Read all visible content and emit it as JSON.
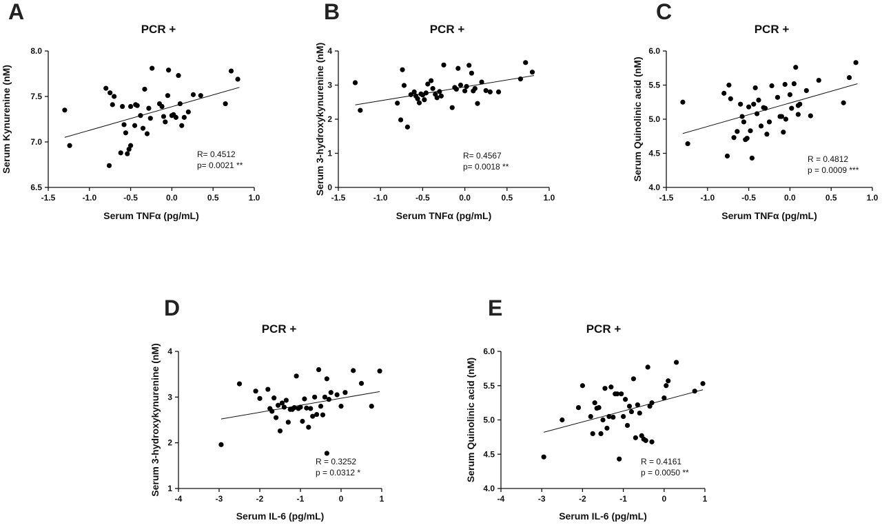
{
  "chart_data": [
    {
      "panel": "A",
      "type": "scatter",
      "title": "PCR +",
      "xlabel": "Serum TNFα (pg/mL)",
      "ylabel": "Serum Kynurenine (nM)",
      "xlim": [
        -1.5,
        1.0
      ],
      "ylim": [
        6.5,
        8.0
      ],
      "xticks": [
        "-1.5",
        "-1.0",
        "-0.5",
        "0.0",
        "0.5",
        "1.0"
      ],
      "yticks": [
        "6.5",
        "7.0",
        "7.5",
        "8.0"
      ],
      "stat_r": "R= 0.4512",
      "stat_p": "p= 0.0021 **",
      "fit_line": [
        [
          -1.3,
          7.05
        ],
        [
          0.82,
          7.6
        ]
      ],
      "points": [
        [
          -1.3,
          7.35
        ],
        [
          -1.24,
          6.96
        ],
        [
          -0.8,
          7.59
        ],
        [
          -0.75,
          7.54
        ],
        [
          -0.76,
          6.74
        ],
        [
          -0.7,
          7.5
        ],
        [
          -0.72,
          7.41
        ],
        [
          -0.6,
          7.39
        ],
        [
          -0.62,
          6.88
        ],
        [
          -0.58,
          7.19
        ],
        [
          -0.56,
          7.1
        ],
        [
          -0.54,
          6.87
        ],
        [
          -0.52,
          6.92
        ],
        [
          -0.5,
          6.96
        ],
        [
          -0.5,
          7.39
        ],
        [
          -0.45,
          7.18
        ],
        [
          -0.44,
          7.41
        ],
        [
          -0.42,
          7.4
        ],
        [
          -0.38,
          7.29
        ],
        [
          -0.35,
          7.15
        ],
        [
          -0.33,
          7.58
        ],
        [
          -0.3,
          7.09
        ],
        [
          -0.28,
          7.37
        ],
        [
          -0.26,
          7.26
        ],
        [
          -0.24,
          7.81
        ],
        [
          -0.15,
          7.42
        ],
        [
          -0.12,
          7.39
        ],
        [
          -0.1,
          7.28
        ],
        [
          -0.08,
          7.22
        ],
        [
          -0.05,
          7.51
        ],
        [
          -0.04,
          7.79
        ],
        [
          0.0,
          7.29
        ],
        [
          0.02,
          7.3
        ],
        [
          0.05,
          7.27
        ],
        [
          0.08,
          7.73
        ],
        [
          0.1,
          7.42
        ],
        [
          0.12,
          7.18
        ],
        [
          0.15,
          7.27
        ],
        [
          0.2,
          7.33
        ],
        [
          0.26,
          7.52
        ],
        [
          0.35,
          7.51
        ],
        [
          0.65,
          7.42
        ],
        [
          0.72,
          7.78
        ],
        [
          0.8,
          7.69
        ]
      ]
    },
    {
      "panel": "B",
      "type": "scatter",
      "title": "PCR +",
      "xlabel": "Serum TNFα (pg/mL)",
      "ylabel": "Serum 3-hydroxykynurenine (nM)",
      "xlim": [
        -1.5,
        1.0
      ],
      "ylim": [
        0,
        4
      ],
      "xticks": [
        "-1.5",
        "-1.0",
        "-0.5",
        "0.0",
        "0.5",
        "1.0"
      ],
      "yticks": [
        "0",
        "1",
        "2",
        "3",
        "4"
      ],
      "stat_r": "R= 0.4567",
      "stat_p": "p= 0.0018 **",
      "fit_line": [
        [
          -1.3,
          2.42
        ],
        [
          0.82,
          3.28
        ]
      ],
      "points": [
        [
          -1.3,
          3.07
        ],
        [
          -1.24,
          2.26
        ],
        [
          -0.8,
          2.47
        ],
        [
          -0.76,
          1.98
        ],
        [
          -0.74,
          3.45
        ],
        [
          -0.72,
          2.99
        ],
        [
          -0.68,
          1.77
        ],
        [
          -0.64,
          2.72
        ],
        [
          -0.6,
          2.8
        ],
        [
          -0.58,
          2.68
        ],
        [
          -0.56,
          2.6
        ],
        [
          -0.54,
          2.48
        ],
        [
          -0.52,
          2.74
        ],
        [
          -0.5,
          2.71
        ],
        [
          -0.48,
          2.57
        ],
        [
          -0.46,
          2.77
        ],
        [
          -0.44,
          3.03
        ],
        [
          -0.4,
          3.13
        ],
        [
          -0.38,
          2.9
        ],
        [
          -0.35,
          2.73
        ],
        [
          -0.33,
          2.63
        ],
        [
          -0.3,
          2.81
        ],
        [
          -0.28,
          2.68
        ],
        [
          -0.25,
          3.59
        ],
        [
          -0.15,
          2.34
        ],
        [
          -0.12,
          2.93
        ],
        [
          -0.1,
          2.88
        ],
        [
          -0.08,
          3.49
        ],
        [
          -0.05,
          3.0
        ],
        [
          0.0,
          2.83
        ],
        [
          0.02,
          2.96
        ],
        [
          0.05,
          3.58
        ],
        [
          0.08,
          3.35
        ],
        [
          0.1,
          2.83
        ],
        [
          0.12,
          2.9
        ],
        [
          0.15,
          2.46
        ],
        [
          0.2,
          3.09
        ],
        [
          0.25,
          2.84
        ],
        [
          0.3,
          2.8
        ],
        [
          0.4,
          2.8
        ],
        [
          0.66,
          3.18
        ],
        [
          0.72,
          3.66
        ],
        [
          0.8,
          3.38
        ]
      ]
    },
    {
      "panel": "C",
      "type": "scatter",
      "title": "PCR +",
      "xlabel": "Serum TNFα (pg/mL)",
      "ylabel": "Serum Quinolinic acid (nM)",
      "xlim": [
        -1.5,
        1.0
      ],
      "ylim": [
        4.0,
        6.0
      ],
      "xticks": [
        "-1.5",
        "-1.0",
        "-0.5",
        "0.0",
        "0.5",
        "1.0"
      ],
      "yticks": [
        "4.0",
        "4.5",
        "5.0",
        "5.5",
        "6.0"
      ],
      "stat_r": "R = 0.4812",
      "stat_p": "p = 0.0009 ***",
      "fit_line": [
        [
          -1.3,
          4.79
        ],
        [
          0.82,
          5.52
        ]
      ],
      "points": [
        [
          -1.3,
          5.25
        ],
        [
          -1.24,
          4.64
        ],
        [
          -0.8,
          5.38
        ],
        [
          -0.76,
          4.46
        ],
        [
          -0.74,
          5.5
        ],
        [
          -0.72,
          5.3
        ],
        [
          -0.68,
          4.73
        ],
        [
          -0.64,
          4.82
        ],
        [
          -0.6,
          5.22
        ],
        [
          -0.58,
          5.04
        ],
        [
          -0.56,
          4.96
        ],
        [
          -0.54,
          4.7
        ],
        [
          -0.52,
          4.72
        ],
        [
          -0.5,
          5.18
        ],
        [
          -0.48,
          4.83
        ],
        [
          -0.46,
          4.43
        ],
        [
          -0.44,
          5.22
        ],
        [
          -0.42,
          5.46
        ],
        [
          -0.4,
          5.08
        ],
        [
          -0.38,
          5.28
        ],
        [
          -0.35,
          4.9
        ],
        [
          -0.32,
          5.17
        ],
        [
          -0.3,
          5.16
        ],
        [
          -0.28,
          4.78
        ],
        [
          -0.25,
          4.96
        ],
        [
          -0.22,
          5.49
        ],
        [
          -0.15,
          5.32
        ],
        [
          -0.12,
          5.04
        ],
        [
          -0.1,
          5.04
        ],
        [
          -0.08,
          4.81
        ],
        [
          -0.06,
          5.51
        ],
        [
          -0.05,
          5.0
        ],
        [
          0.0,
          5.36
        ],
        [
          0.02,
          5.16
        ],
        [
          0.05,
          5.52
        ],
        [
          0.07,
          5.76
        ],
        [
          0.1,
          5.2
        ],
        [
          0.1,
          5.07
        ],
        [
          0.12,
          5.22
        ],
        [
          0.2,
          5.42
        ],
        [
          0.25,
          5.05
        ],
        [
          0.35,
          5.57
        ],
        [
          0.65,
          5.24
        ],
        [
          0.72,
          5.61
        ],
        [
          0.8,
          5.83
        ]
      ]
    },
    {
      "panel": "D",
      "type": "scatter",
      "title": "PCR +",
      "xlabel": "Serum IL-6 (pg/mL)",
      "ylabel": "Serum 3-hydroxykynurenine (nM)",
      "xlim": [
        -4,
        1
      ],
      "ylim": [
        1,
        4
      ],
      "xticks": [
        "-4",
        "-3",
        "-2",
        "-1",
        "0",
        "1"
      ],
      "yticks": [
        "1",
        "2",
        "3",
        "4"
      ],
      "stat_r": "R = 0.3252",
      "stat_p": "p = 0.0312 *",
      "fit_line": [
        [
          -2.95,
          2.52
        ],
        [
          0.95,
          3.12
        ]
      ],
      "points": [
        [
          -2.95,
          1.96
        ],
        [
          -2.5,
          3.29
        ],
        [
          -2.1,
          3.13
        ],
        [
          -2.0,
          2.97
        ],
        [
          -1.8,
          3.17
        ],
        [
          -1.75,
          2.75
        ],
        [
          -1.7,
          2.69
        ],
        [
          -1.65,
          2.98
        ],
        [
          -1.6,
          2.55
        ],
        [
          -1.55,
          2.82
        ],
        [
          -1.5,
          2.26
        ],
        [
          -1.45,
          2.87
        ],
        [
          -1.4,
          2.78
        ],
        [
          -1.35,
          2.93
        ],
        [
          -1.3,
          2.45
        ],
        [
          -1.25,
          2.73
        ],
        [
          -1.2,
          2.73
        ],
        [
          -1.15,
          2.77
        ],
        [
          -1.1,
          3.46
        ],
        [
          -1.05,
          2.75
        ],
        [
          -1.0,
          2.78
        ],
        [
          -0.95,
          2.47
        ],
        [
          -0.9,
          2.96
        ],
        [
          -0.85,
          2.76
        ],
        [
          -0.8,
          2.34
        ],
        [
          -0.75,
          2.75
        ],
        [
          -0.7,
          2.58
        ],
        [
          -0.65,
          3.0
        ],
        [
          -0.6,
          2.62
        ],
        [
          -0.55,
          3.6
        ],
        [
          -0.5,
          2.8
        ],
        [
          -0.45,
          2.61
        ],
        [
          -0.4,
          3.0
        ],
        [
          -0.35,
          3.4
        ],
        [
          -0.3,
          2.95
        ],
        [
          -0.25,
          3.1
        ],
        [
          -0.1,
          3.05
        ],
        [
          0.0,
          2.8
        ],
        [
          0.1,
          3.1
        ],
        [
          -0.35,
          1.77
        ],
        [
          0.3,
          3.58
        ],
        [
          0.5,
          3.3
        ],
        [
          0.75,
          2.8
        ],
        [
          0.95,
          3.57
        ]
      ]
    },
    {
      "panel": "E",
      "type": "scatter",
      "title": "PCR +",
      "xlabel": "Serum IL-6 (pg/mL)",
      "ylabel": "Serum Quinolinic acid (nM)",
      "xlim": [
        -4,
        1
      ],
      "ylim": [
        4.0,
        6.0
      ],
      "xticks": [
        "-4",
        "-3",
        "-2",
        "-1",
        "0",
        "1"
      ],
      "yticks": [
        "4.0",
        "4.5",
        "5.0",
        "5.5",
        "6.0"
      ],
      "stat_r": "R = 0.4161",
      "stat_p": "p = 0.0050 **",
      "fit_line": [
        [
          -2.95,
          4.82
        ],
        [
          0.95,
          5.44
        ]
      ],
      "points": [
        [
          -2.95,
          4.46
        ],
        [
          -2.5,
          5.0
        ],
        [
          -2.1,
          5.18
        ],
        [
          -2.0,
          5.5
        ],
        [
          -1.8,
          5.05
        ],
        [
          -1.75,
          4.8
        ],
        [
          -1.7,
          5.25
        ],
        [
          -1.65,
          5.17
        ],
        [
          -1.6,
          5.18
        ],
        [
          -1.55,
          4.8
        ],
        [
          -1.5,
          5.0
        ],
        [
          -1.45,
          5.46
        ],
        [
          -1.4,
          4.88
        ],
        [
          -1.35,
          5.05
        ],
        [
          -1.3,
          5.48
        ],
        [
          -1.25,
          5.04
        ],
        [
          -1.2,
          5.38
        ],
        [
          -1.15,
          5.38
        ],
        [
          -1.1,
          4.43
        ],
        [
          -1.05,
          5.38
        ],
        [
          -1.0,
          5.05
        ],
        [
          -0.95,
          5.3
        ],
        [
          -0.9,
          4.92
        ],
        [
          -0.85,
          5.2
        ],
        [
          -0.8,
          5.12
        ],
        [
          -0.75,
          5.6
        ],
        [
          -0.7,
          4.74
        ],
        [
          -0.65,
          5.22
        ],
        [
          -0.6,
          5.1
        ],
        [
          -0.55,
          4.77
        ],
        [
          -0.5,
          4.72
        ],
        [
          -0.45,
          4.7
        ],
        [
          -0.4,
          5.77
        ],
        [
          -0.35,
          5.2
        ],
        [
          -0.3,
          5.25
        ],
        [
          0.0,
          5.32
        ],
        [
          0.05,
          5.5
        ],
        [
          0.1,
          5.57
        ],
        [
          0.3,
          5.84
        ],
        [
          0.75,
          5.42
        ],
        [
          0.95,
          5.53
        ],
        [
          -0.3,
          4.68
        ]
      ]
    }
  ]
}
